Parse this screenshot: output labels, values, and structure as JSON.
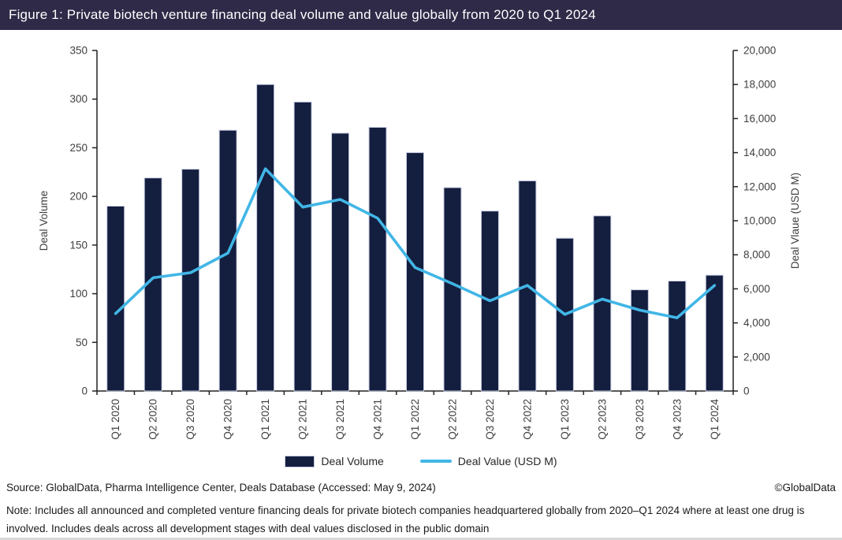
{
  "title_bar": {
    "text": "Figure 1: Private biotech venture financing deal volume and value globally from 2020 to Q1 2024",
    "bg_color": "#2f2a48"
  },
  "chart_data": {
    "type": "bar",
    "subtype": "combo-bar-line",
    "categories": [
      "Q1 2020",
      "Q2 2020",
      "Q3 2020",
      "Q4 2020",
      "Q1 2021",
      "Q2 2021",
      "Q3 2021",
      "Q4 2021",
      "Q1 2022",
      "Q2 2022",
      "Q3 2022",
      "Q4 2022",
      "Q1 2023",
      "Q2 2023",
      "Q3 2023",
      "Q4 2023",
      "Q1 2024"
    ],
    "series": [
      {
        "name": "Deal Volume",
        "type": "bar",
        "axis": "left",
        "color": "#141e3e",
        "border_color": "#c9cde3",
        "values": [
          190,
          219,
          228,
          268,
          315,
          297,
          265,
          271,
          245,
          209,
          185,
          216,
          157,
          180,
          104,
          113,
          119
        ]
      },
      {
        "name": "Deal Value (USD M)",
        "type": "line",
        "axis": "right",
        "color": "#41b6e6",
        "values": [
          4550,
          6650,
          6950,
          8100,
          13050,
          10800,
          11250,
          10150,
          7250,
          6300,
          5300,
          6200,
          4500,
          5400,
          4750,
          4300,
          6200
        ]
      }
    ],
    "left_axis": {
      "label": "Deal Volume",
      "min": 0,
      "max": 350,
      "step": 50,
      "tick_labels": [
        "0",
        "50",
        "100",
        "150",
        "200",
        "250",
        "300",
        "350"
      ]
    },
    "right_axis": {
      "label": "Deal Vlaue (USD M)",
      "min": 0,
      "max": 20000,
      "step": 2000,
      "tick_labels": [
        "0",
        "2,000",
        "4,000",
        "6,000",
        "8,000",
        "10,000",
        "12,000",
        "14,000",
        "16,000",
        "18,000",
        "20,000"
      ]
    },
    "grid": false,
    "legend_position": "bottom"
  },
  "legend": {
    "items": [
      {
        "label": "Deal Volume",
        "swatch": "bar",
        "color": "#141e3e"
      },
      {
        "label": "Deal Value (USD M)",
        "swatch": "line",
        "color": "#41b6e6"
      }
    ]
  },
  "footer": {
    "source": "Source: GlobalData, Pharma Intelligence Center, Deals Database (Accessed: May 9, 2024)",
    "copyright": "©GlobalData",
    "note": "Note: Includes all announced and completed venture financing deals for private biotech companies headquartered globally from 2020–Q1 2024 where at least one drug is involved. Includes deals across all development stages with deal values disclosed in the public domain"
  }
}
